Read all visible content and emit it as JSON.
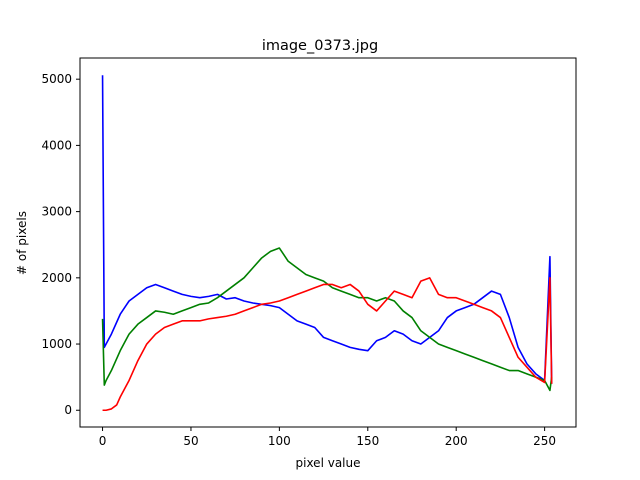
{
  "chart_data": {
    "type": "line",
    "title": "image_0373.jpg",
    "xlabel": "pixel value",
    "ylabel": "# of pixels",
    "xlim": [
      -12.75,
      267.75
    ],
    "ylim": [
      -253,
      5320
    ],
    "xticks": [
      0,
      50,
      100,
      150,
      200,
      250
    ],
    "yticks": [
      0,
      1000,
      2000,
      3000,
      4000,
      5000
    ],
    "grid": false,
    "legend": false,
    "series": [
      {
        "color": "#0000ff",
        "x": [
          0,
          1,
          2,
          5,
          10,
          15,
          20,
          25,
          30,
          35,
          40,
          45,
          50,
          55,
          60,
          65,
          70,
          75,
          80,
          85,
          90,
          95,
          100,
          105,
          110,
          115,
          120,
          125,
          130,
          135,
          140,
          145,
          150,
          155,
          160,
          165,
          170,
          175,
          180,
          185,
          190,
          195,
          200,
          205,
          210,
          215,
          220,
          225,
          230,
          235,
          240,
          245,
          250,
          253,
          254
        ],
        "y": [
          5060,
          950,
          1000,
          1150,
          1450,
          1650,
          1750,
          1850,
          1900,
          1850,
          1800,
          1750,
          1720,
          1700,
          1720,
          1750,
          1680,
          1700,
          1650,
          1620,
          1600,
          1580,
          1550,
          1450,
          1350,
          1300,
          1250,
          1100,
          1050,
          1000,
          950,
          920,
          900,
          1050,
          1100,
          1200,
          1150,
          1050,
          1000,
          1100,
          1200,
          1400,
          1500,
          1550,
          1600,
          1700,
          1800,
          1750,
          1400,
          950,
          700,
          550,
          450,
          2320,
          400
        ]
      },
      {
        "color": "#008000",
        "x": [
          0,
          1,
          2,
          5,
          10,
          15,
          20,
          25,
          30,
          35,
          40,
          45,
          50,
          55,
          60,
          65,
          70,
          75,
          80,
          85,
          90,
          95,
          100,
          105,
          110,
          115,
          120,
          125,
          130,
          135,
          140,
          145,
          150,
          155,
          160,
          165,
          170,
          175,
          180,
          185,
          190,
          195,
          200,
          205,
          210,
          215,
          220,
          225,
          230,
          235,
          240,
          245,
          250,
          253,
          254
        ],
        "y": [
          1380,
          380,
          450,
          600,
          900,
          1150,
          1300,
          1400,
          1500,
          1480,
          1450,
          1500,
          1550,
          1600,
          1620,
          1700,
          1800,
          1900,
          2000,
          2150,
          2300,
          2400,
          2450,
          2250,
          2150,
          2050,
          2000,
          1950,
          1850,
          1800,
          1750,
          1700,
          1700,
          1650,
          1700,
          1650,
          1500,
          1400,
          1200,
          1100,
          1000,
          950,
          900,
          850,
          800,
          750,
          700,
          650,
          600,
          600,
          550,
          500,
          450,
          300,
          500
        ]
      },
      {
        "color": "#ff0000",
        "x": [
          0,
          2,
          5,
          8,
          10,
          15,
          20,
          25,
          30,
          35,
          40,
          45,
          50,
          55,
          60,
          65,
          70,
          75,
          80,
          85,
          90,
          95,
          100,
          105,
          110,
          115,
          120,
          125,
          130,
          135,
          140,
          145,
          150,
          155,
          160,
          165,
          170,
          175,
          180,
          185,
          190,
          195,
          200,
          205,
          210,
          215,
          220,
          225,
          230,
          235,
          240,
          245,
          250,
          253,
          254
        ],
        "y": [
          0,
          0,
          20,
          80,
          200,
          450,
          750,
          1000,
          1150,
          1250,
          1300,
          1350,
          1350,
          1350,
          1380,
          1400,
          1420,
          1450,
          1500,
          1550,
          1600,
          1620,
          1650,
          1700,
          1750,
          1800,
          1850,
          1900,
          1900,
          1850,
          1900,
          1800,
          1600,
          1500,
          1650,
          1800,
          1750,
          1700,
          1950,
          2000,
          1750,
          1700,
          1700,
          1650,
          1600,
          1550,
          1500,
          1400,
          1100,
          800,
          650,
          500,
          420,
          2000,
          400
        ]
      }
    ]
  }
}
